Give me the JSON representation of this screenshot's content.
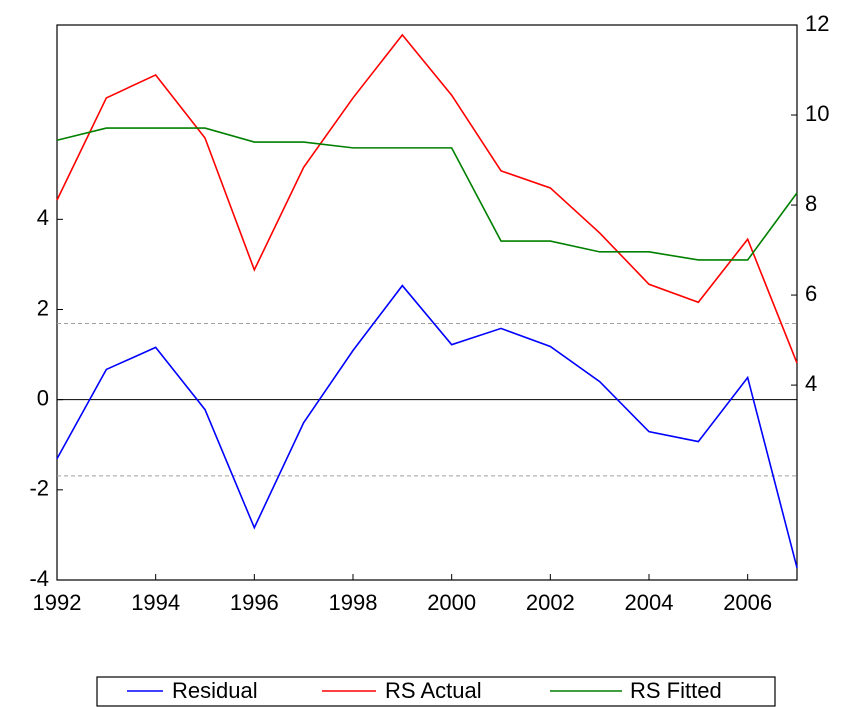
{
  "chart_data": {
    "type": "line",
    "x": [
      1992,
      1993,
      1994,
      1995,
      1996,
      1997,
      1998,
      1999,
      2000,
      2001,
      2002,
      2003,
      2004,
      2005,
      2006,
      2007
    ],
    "xlim": [
      1992,
      2007
    ],
    "xticks": [
      1992,
      1994,
      1996,
      1998,
      2000,
      2002,
      2004,
      2006
    ],
    "ylim": [
      -4,
      8.31
    ],
    "yticks": [
      -4,
      -2,
      0,
      2,
      4
    ],
    "y2lim": [
      -0.33,
      12
    ],
    "y2ticks": [
      4,
      6,
      8,
      10,
      12
    ],
    "hlines": [
      {
        "value": 0,
        "style": "solid",
        "color": "#000000"
      },
      {
        "value": 1.69,
        "style": "dashed",
        "color": "#a0a0a0"
      },
      {
        "value": -1.69,
        "style": "dashed",
        "color": "#a0a0a0"
      }
    ],
    "series": [
      {
        "name": "Residual",
        "color": "#0000ff",
        "values": [
          -1.31,
          0.67,
          1.16,
          -0.22,
          -2.84,
          -0.51,
          1.09,
          2.53,
          1.22,
          1.58,
          1.18,
          0.4,
          -0.71,
          -0.93,
          0.49,
          -3.73
        ]
      },
      {
        "name": "RS Actual",
        "color": "#ff0000",
        "axis": "y2",
        "values": [
          8.11,
          10.38,
          10.89,
          9.49,
          6.56,
          8.84,
          10.38,
          11.78,
          10.44,
          8.76,
          8.38,
          7.38,
          6.24,
          5.84,
          7.24,
          4.49
        ]
      },
      {
        "name": "RS Fitted",
        "color": "#008000",
        "axis": "y2",
        "values": [
          9.44,
          9.71,
          9.71,
          9.71,
          9.4,
          9.4,
          9.27,
          9.27,
          9.27,
          7.2,
          7.2,
          6.96,
          6.96,
          6.78,
          6.78,
          8.27
        ]
      }
    ],
    "legend": "bottom"
  }
}
